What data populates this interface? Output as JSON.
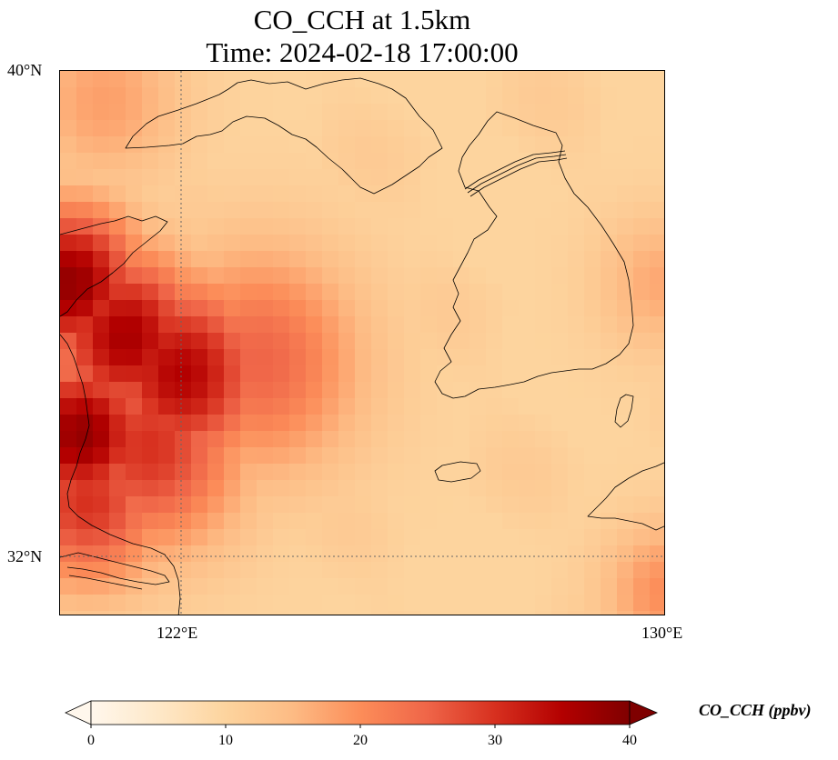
{
  "title": {
    "line1": "CO_CCH at 1.5km",
    "line2": "Time: 2024-02-18 17:00:00"
  },
  "map": {
    "extent": {
      "lon_min": 119,
      "lon_max": 130,
      "lat_min": 31,
      "lat_max": 40
    },
    "gridlines_lat": [
      32
    ],
    "gridlines_lon": [
      122
    ],
    "lat_labels": [
      "40°N",
      "32°N"
    ],
    "lon_labels": [
      "122°E",
      "130°E"
    ],
    "field": {
      "background_value": 10,
      "colormap": "OrRd",
      "hotspots": [
        {
          "lon": 119.2,
          "lat": 36.5,
          "value": 38,
          "spread": 0.9
        },
        {
          "lon": 120.2,
          "lat": 35.6,
          "value": 36,
          "spread": 1.0
        },
        {
          "lon": 121.2,
          "lat": 35.0,
          "value": 35,
          "spread": 1.1
        },
        {
          "lon": 119.4,
          "lat": 34.0,
          "value": 38,
          "spread": 0.9
        },
        {
          "lon": 120.6,
          "lat": 33.8,
          "value": 30,
          "spread": 1.2
        },
        {
          "lon": 119.5,
          "lat": 32.9,
          "value": 30,
          "spread": 1.0
        },
        {
          "lon": 122.6,
          "lat": 35.2,
          "value": 25,
          "spread": 1.3
        },
        {
          "lon": 119.8,
          "lat": 39.5,
          "value": 18,
          "spread": 1.0
        },
        {
          "lon": 130.0,
          "lat": 31.4,
          "value": 20,
          "spread": 0.8
        },
        {
          "lon": 129.9,
          "lat": 36.5,
          "value": 17,
          "spread": 0.8
        }
      ]
    }
  },
  "colorbar": {
    "label": "CO_CCH (ppbv)",
    "min": 0,
    "max": 40,
    "ticks": [
      "0",
      "10",
      "20",
      "30",
      "40"
    ],
    "extend": "both",
    "colors": [
      "#fff7ec",
      "#fee8c8",
      "#fdd49e",
      "#fdbb84",
      "#fc8d59",
      "#ef6548",
      "#d7301f",
      "#b30000",
      "#7f0000"
    ]
  }
}
